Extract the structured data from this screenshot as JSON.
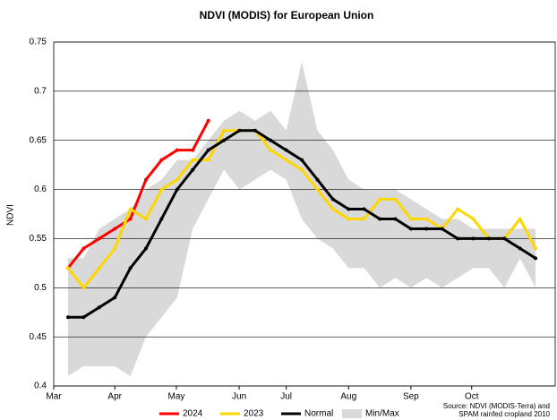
{
  "chart_data": {
    "type": "line",
    "title": "NDVI (MODIS) for European Union",
    "y_label": "NDVI",
    "x": [
      0,
      1,
      2,
      3,
      4,
      5,
      6,
      7,
      8,
      9,
      10,
      11,
      12,
      13,
      14,
      15,
      16,
      17,
      18,
      19,
      20,
      21,
      22,
      23,
      24,
      25,
      26,
      27,
      28,
      29,
      30
    ],
    "xlim": [
      -0.92,
      31.26
    ],
    "xticks": [
      {
        "value": -0.92,
        "label": "Mar"
      },
      {
        "value": 3,
        "label": "Apr"
      },
      {
        "value": 6.95,
        "label": "May"
      },
      {
        "value": 10.98,
        "label": "Jun"
      },
      {
        "value": 14,
        "label": "Jul"
      },
      {
        "value": 18,
        "label": "Aug"
      },
      {
        "value": 22,
        "label": "Sep"
      },
      {
        "value": 25.9,
        "label": "Oct"
      }
    ],
    "ylim": [
      0.4,
      0.75
    ],
    "yticks": [
      0.4,
      0.45,
      0.5,
      0.55,
      0.6,
      0.65,
      0.7,
      0.75
    ],
    "grid": true,
    "band": {
      "name": "Min/Max",
      "color": "#d9d9d9",
      "low": [
        0.41,
        0.42,
        0.42,
        0.42,
        0.41,
        0.45,
        0.47,
        0.49,
        0.56,
        0.59,
        0.62,
        0.6,
        0.61,
        0.62,
        0.61,
        0.57,
        0.55,
        0.54,
        0.52,
        0.52,
        0.5,
        0.51,
        0.5,
        0.51,
        0.5,
        0.51,
        0.52,
        0.52,
        0.5,
        0.53,
        0.5
      ],
      "high": [
        0.53,
        0.53,
        0.56,
        0.57,
        0.58,
        0.6,
        0.61,
        0.63,
        0.63,
        0.65,
        0.67,
        0.68,
        0.67,
        0.68,
        0.66,
        0.73,
        0.66,
        0.64,
        0.61,
        0.6,
        0.6,
        0.6,
        0.59,
        0.58,
        0.57,
        0.57,
        0.56,
        0.56,
        0.56,
        0.56,
        0.56
      ]
    },
    "series": [
      {
        "name": "2024",
        "color": "#ff0000",
        "values": [
          0.52,
          0.54,
          0.55,
          0.56,
          0.57,
          0.61,
          0.63,
          0.64,
          0.64,
          0.67,
          null,
          null,
          null,
          null,
          null,
          null,
          null,
          null,
          null,
          null,
          null,
          null,
          null,
          null,
          null,
          null,
          null,
          null,
          null,
          null,
          null
        ]
      },
      {
        "name": "2023",
        "color": "#ffd700",
        "values": [
          0.52,
          0.5,
          0.52,
          0.54,
          0.58,
          0.57,
          0.6,
          0.61,
          0.63,
          0.63,
          0.66,
          0.66,
          0.66,
          0.64,
          0.63,
          0.62,
          0.6,
          0.58,
          0.57,
          0.57,
          0.59,
          0.59,
          0.57,
          0.57,
          0.56,
          0.58,
          0.57,
          0.55,
          0.55,
          0.57,
          0.54
        ]
      },
      {
        "name": "Normal",
        "color": "#000000",
        "values": [
          0.47,
          0.47,
          0.48,
          0.49,
          0.52,
          0.54,
          0.57,
          0.6,
          0.62,
          0.64,
          0.65,
          0.66,
          0.66,
          0.65,
          0.64,
          0.63,
          0.61,
          0.59,
          0.58,
          0.58,
          0.57,
          0.57,
          0.56,
          0.56,
          0.56,
          0.55,
          0.55,
          0.55,
          0.55,
          0.54,
          0.53
        ]
      }
    ],
    "legend": "bottom",
    "source": [
      "Source: NDVI (MODIS-Terra) and",
      "SPAM rainfed cropland 2010"
    ]
  }
}
